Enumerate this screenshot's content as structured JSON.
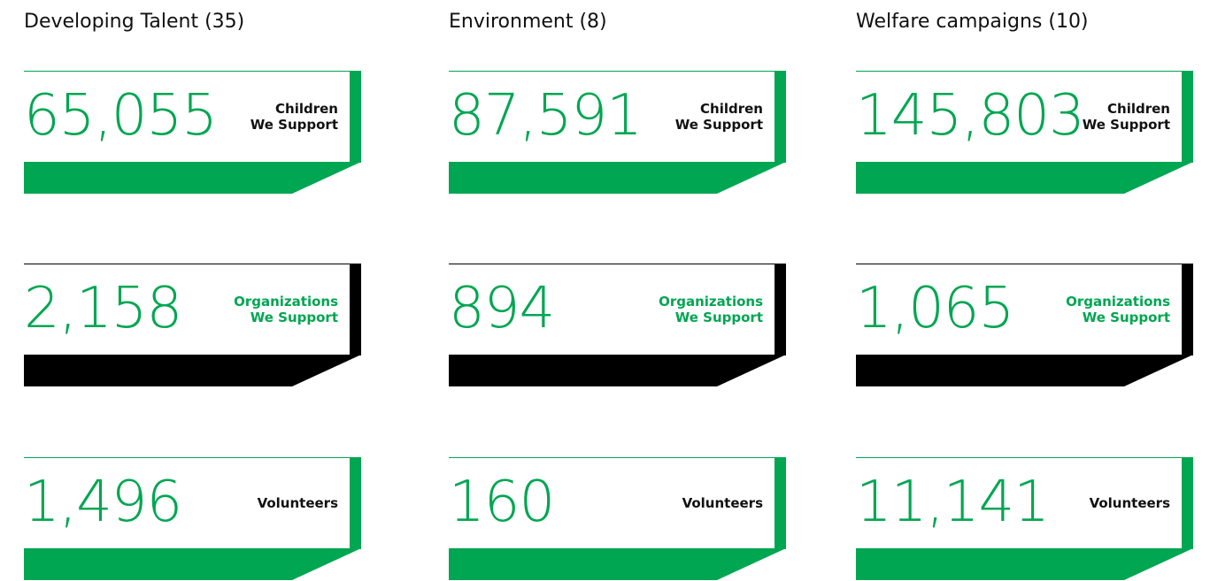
{
  "columns": [
    {
      "title": "Developing Talent (35)",
      "stats": [
        {
          "number": "65,055",
          "label": [
            "Children",
            "We Support"
          ]
        },
        {
          "number": "2,158",
          "label": [
            "Organizations",
            "We Support"
          ]
        },
        {
          "number": "1,496",
          "label": [
            "Volunteers"
          ]
        }
      ]
    },
    {
      "title": "Environment (8)",
      "stats": [
        {
          "number": "87,591",
          "label": [
            "Children",
            "We Support"
          ]
        },
        {
          "number": "894",
          "label": [
            "Organizations",
            "We Support"
          ]
        },
        {
          "number": "160",
          "label": [
            "Volunteers"
          ]
        }
      ]
    },
    {
      "title": "Welfare campaigns (10)",
      "stats": [
        {
          "number": "145,803",
          "label": [
            "Children",
            "We Support"
          ]
        },
        {
          "number": "1,065",
          "label": [
            "Organizations",
            "We Support"
          ]
        },
        {
          "number": "11,141",
          "label": [
            "Volunteers"
          ]
        }
      ]
    }
  ]
}
